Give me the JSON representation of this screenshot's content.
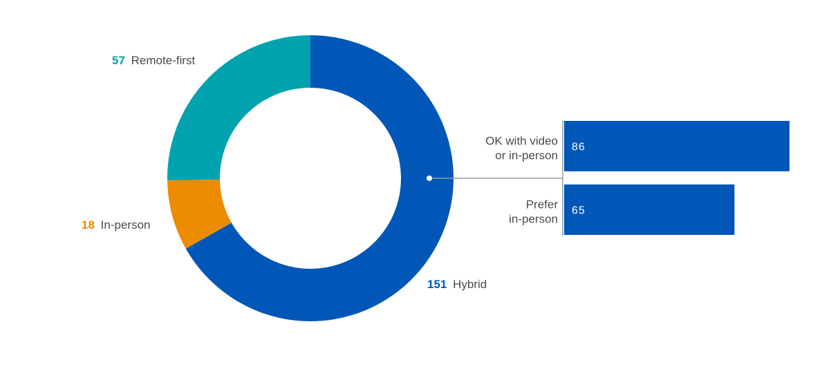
{
  "chart_data": [
    {
      "type": "pie",
      "donut": true,
      "categories": [
        "Hybrid",
        "In-person",
        "Remote-first"
      ],
      "values": [
        151,
        18,
        57
      ],
      "colors": [
        "#0057b8",
        "#ec8b00",
        "#00a3ad"
      ],
      "labels": [
        {
          "value": "151",
          "text": "Hybrid"
        },
        {
          "value": "18",
          "text": "In-person"
        },
        {
          "value": "57",
          "text": "Remote-first"
        }
      ]
    },
    {
      "type": "bar",
      "orientation": "horizontal",
      "breakdown_of": "Hybrid",
      "categories": [
        [
          "OK with video",
          "or in-person"
        ],
        [
          "Prefer",
          "in-person"
        ]
      ],
      "values": [
        86,
        65
      ],
      "value_labels": [
        "86",
        "65"
      ],
      "color": "#0057b8"
    }
  ]
}
